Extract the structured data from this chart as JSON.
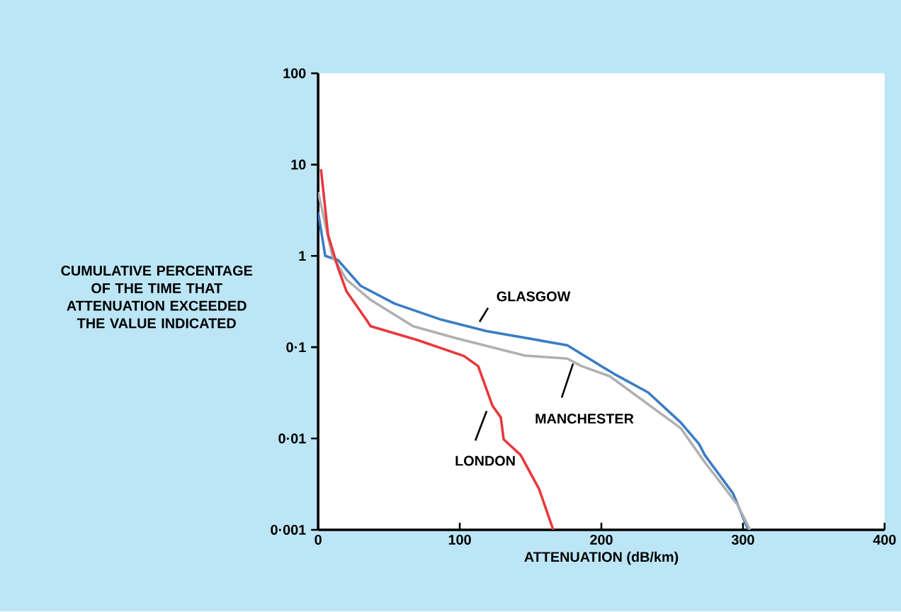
{
  "chart_data": {
    "type": "line",
    "xlabel": "ATTENUATION (dB/km)",
    "ylabel": "CUMULATIVE PERCENTAGE OF THE TIME THAT ATTENUATION EXCEEDED THE VALUE INDICATED",
    "log": "y",
    "xlim": [
      0,
      400
    ],
    "ylim": [
      0.001,
      100
    ],
    "xticks": [
      0,
      100,
      200,
      300,
      400
    ],
    "yticks": [
      {
        "value": 0.001,
        "label": "0·001"
      },
      {
        "value": 0.01,
        "label": "0·01"
      },
      {
        "value": 0.1,
        "label": "0·1"
      },
      1,
      10,
      100
    ],
    "series": [
      {
        "name": "GLASGOW",
        "color": "#3a7cc4",
        "x": [
          0,
          5,
          14,
          30,
          54,
          87,
          119,
          176,
          200,
          209,
          233,
          256,
          269,
          273,
          293,
          302,
          304
        ],
        "values": [
          3,
          1.0,
          0.9,
          0.47,
          0.3,
          0.2,
          0.15,
          0.105,
          0.062,
          0.051,
          0.032,
          0.015,
          0.0087,
          0.0066,
          0.0025,
          0.00115,
          0.001
        ]
      },
      {
        "name": "MANCHESTER",
        "color": "#b0b0b0",
        "x": [
          0,
          10,
          20,
          37,
          67,
          97,
          146,
          176,
          186,
          206,
          256,
          273,
          296,
          305
        ],
        "values": [
          5,
          1.0,
          0.55,
          0.33,
          0.17,
          0.126,
          0.081,
          0.075,
          0.062,
          0.048,
          0.013,
          0.0055,
          0.0019,
          0.001
        ]
      },
      {
        "name": "LONDON",
        "color": "#e8383d",
        "x": [
          2,
          7,
          14,
          20,
          34,
          37,
          70,
          103,
          113,
          123,
          129,
          131,
          143,
          156,
          166
        ],
        "values": [
          8.9,
          1.7,
          0.74,
          0.41,
          0.2,
          0.17,
          0.12,
          0.08,
          0.062,
          0.023,
          0.017,
          0.0098,
          0.0066,
          0.0028,
          0.001
        ]
      }
    ]
  }
}
